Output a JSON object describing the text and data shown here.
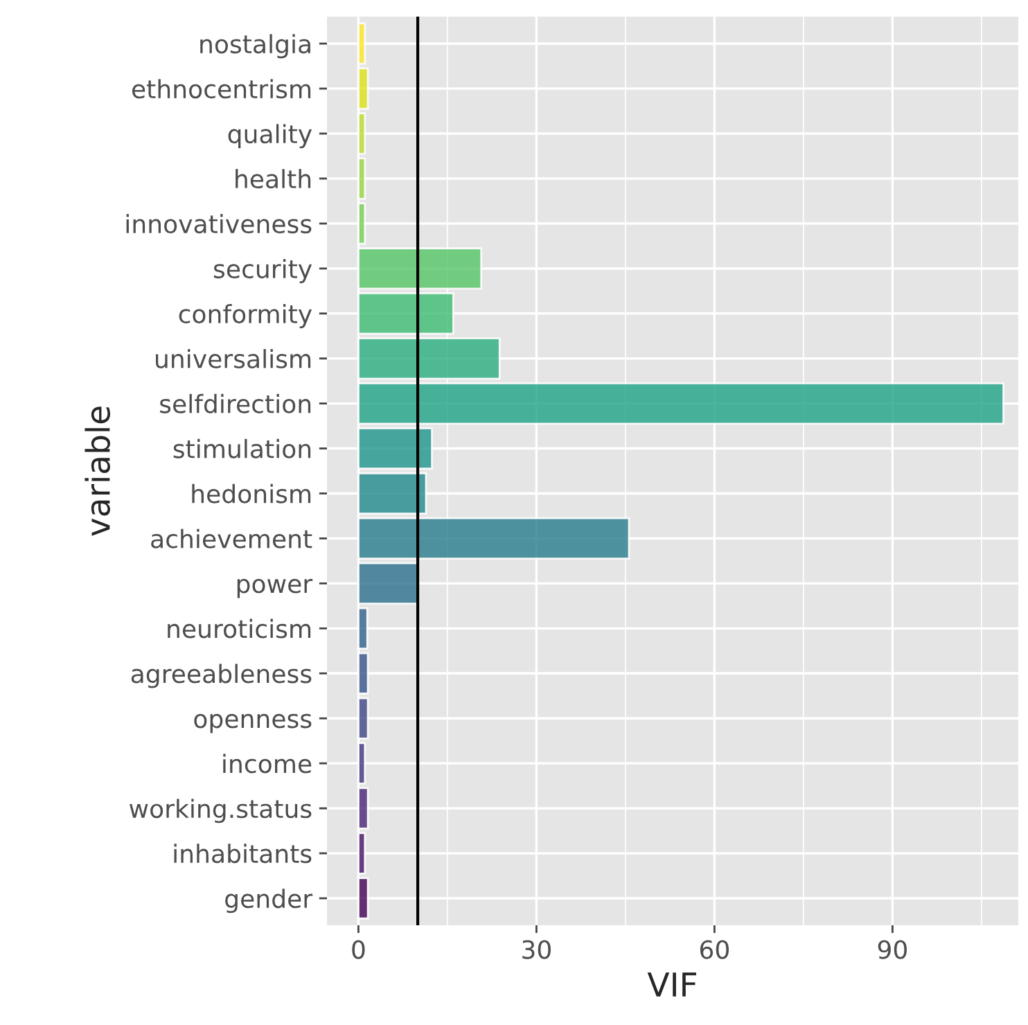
{
  "chart_data": {
    "type": "bar",
    "orientation": "horizontal",
    "xlabel": "VIF",
    "ylabel": "variable",
    "categories": [
      "nostalgia",
      "ethnocentrism",
      "quality",
      "health",
      "innovativeness",
      "security",
      "conformity",
      "universalism",
      "selfdirection",
      "stimulation",
      "hedonism",
      "achievement",
      "power",
      "neuroticism",
      "agreeableness",
      "openness",
      "income",
      "working.status",
      "inhabitants",
      "gender"
    ],
    "values": [
      1.1,
      1.6,
      1.1,
      1.1,
      1.1,
      20.7,
      16.0,
      23.8,
      108.7,
      12.4,
      11.4,
      45.6,
      10.1,
      1.5,
      1.6,
      1.6,
      1.1,
      1.6,
      1.1,
      1.6
    ],
    "colors": [
      "#fde725",
      "#dde318",
      "#bade28",
      "#95d840",
      "#75d054",
      "#56c667",
      "#3dbc74",
      "#29af7f",
      "#20a386",
      "#1f968b",
      "#238a8d",
      "#287d8e",
      "#2d718e",
      "#33638d",
      "#39558c",
      "#404688",
      "#453781",
      "#482576",
      "#481467",
      "#440154"
    ],
    "xlim": [
      -5.3,
      111.2
    ],
    "xticks": [
      0,
      30,
      60,
      90
    ],
    "ref_lines": [
      {
        "axis": "x",
        "value": 10,
        "color": "#000000"
      }
    ],
    "grid": true,
    "legend": false
  }
}
